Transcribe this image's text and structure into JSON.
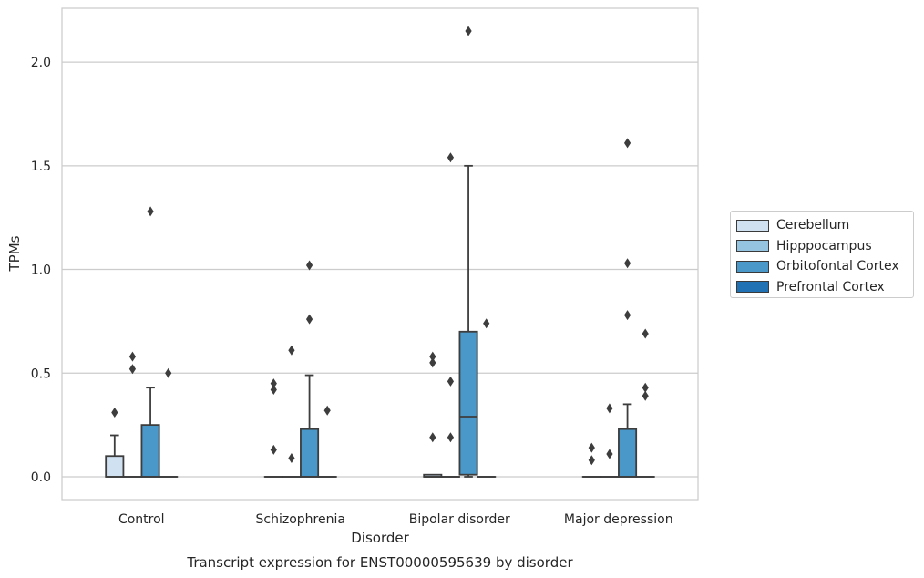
{
  "chart_data": {
    "type": "box",
    "title": "Transcript expression for ENST00000595639 by disorder",
    "xlabel": "Disorder",
    "ylabel": "TPMs",
    "categories": [
      "Control",
      "Schizophrenia",
      "Bipolar disorder",
      "Major depression"
    ],
    "yticks": [
      "0.0",
      "0.5",
      "1.0",
      "1.5",
      "2.0"
    ],
    "ylim": [
      -0.11,
      2.26
    ],
    "grid": true,
    "legend_position": "right",
    "series": [
      {
        "name": "Cerebellum",
        "color": "#d0e1f2",
        "boxes": [
          {
            "category": "Control",
            "q1": 0.0,
            "median": 0.0,
            "q3": 0.1,
            "whisker_low": 0.0,
            "whisker_high": 0.2,
            "outliers": [
              0.31
            ]
          },
          {
            "category": "Schizophrenia",
            "q1": 0.0,
            "median": 0.0,
            "q3": 0.0,
            "whisker_low": 0.0,
            "whisker_high": 0.0,
            "outliers": [
              0.13,
              0.42,
              0.45
            ]
          },
          {
            "category": "Bipolar disorder",
            "q1": 0.0,
            "median": 0.0,
            "q3": 0.01,
            "whisker_low": 0.0,
            "whisker_high": 0.01,
            "outliers": [
              0.19,
              0.55,
              0.58
            ]
          },
          {
            "category": "Major depression",
            "q1": 0.0,
            "median": 0.0,
            "q3": 0.0,
            "whisker_low": 0.0,
            "whisker_high": 0.0,
            "outliers": [
              0.08,
              0.14
            ]
          }
        ]
      },
      {
        "name": "Hipppocampus",
        "color": "#94c4df",
        "boxes": [
          {
            "category": "Control",
            "q1": 0.0,
            "median": 0.0,
            "q3": 0.0,
            "whisker_low": 0.0,
            "whisker_high": 0.0,
            "outliers": [
              0.52,
              0.58
            ]
          },
          {
            "category": "Schizophrenia",
            "q1": 0.0,
            "median": 0.0,
            "q3": 0.0,
            "whisker_low": 0.0,
            "whisker_high": 0.0,
            "outliers": [
              0.09,
              0.61
            ]
          },
          {
            "category": "Bipolar disorder",
            "q1": 0.0,
            "median": 0.0,
            "q3": 0.0,
            "whisker_low": 0.0,
            "whisker_high": 0.0,
            "outliers": [
              0.19,
              0.46,
              1.54
            ]
          },
          {
            "category": "Major depression",
            "q1": 0.0,
            "median": 0.0,
            "q3": 0.0,
            "whisker_low": 0.0,
            "whisker_high": 0.0,
            "outliers": [
              0.11,
              0.33
            ]
          }
        ]
      },
      {
        "name": "Orbitofontal Cortex",
        "color": "#4a98c9",
        "boxes": [
          {
            "category": "Control",
            "q1": 0.0,
            "median": 0.0,
            "q3": 0.25,
            "whisker_low": 0.0,
            "whisker_high": 0.43,
            "outliers": [
              1.28
            ]
          },
          {
            "category": "Schizophrenia",
            "q1": 0.0,
            "median": 0.0,
            "q3": 0.23,
            "whisker_low": 0.0,
            "whisker_high": 0.49,
            "outliers": [
              0.76,
              1.02
            ]
          },
          {
            "category": "Bipolar disorder",
            "q1": 0.01,
            "median": 0.29,
            "q3": 0.7,
            "whisker_low": 0.0,
            "whisker_high": 1.5,
            "outliers": [
              2.15
            ]
          },
          {
            "category": "Major depression",
            "q1": 0.0,
            "median": 0.0,
            "q3": 0.23,
            "whisker_low": 0.0,
            "whisker_high": 0.35,
            "outliers": [
              0.78,
              1.03,
              1.61
            ]
          }
        ]
      },
      {
        "name": "Prefrontal Cortex",
        "color": "#2171b5",
        "boxes": [
          {
            "category": "Control",
            "q1": 0.0,
            "median": 0.0,
            "q3": 0.0,
            "whisker_low": 0.0,
            "whisker_high": 0.0,
            "outliers": [
              0.5
            ]
          },
          {
            "category": "Schizophrenia",
            "q1": 0.0,
            "median": 0.0,
            "q3": 0.0,
            "whisker_low": 0.0,
            "whisker_high": 0.0,
            "outliers": [
              0.32
            ]
          },
          {
            "category": "Bipolar disorder",
            "q1": 0.0,
            "median": 0.0,
            "q3": 0.0,
            "whisker_low": 0.0,
            "whisker_high": 0.0,
            "outliers": [
              0.74
            ]
          },
          {
            "category": "Major depression",
            "q1": 0.0,
            "median": 0.0,
            "q3": 0.0,
            "whisker_low": 0.0,
            "whisker_high": 0.0,
            "outliers": [
              0.39,
              0.43,
              0.69
            ]
          }
        ]
      }
    ]
  }
}
